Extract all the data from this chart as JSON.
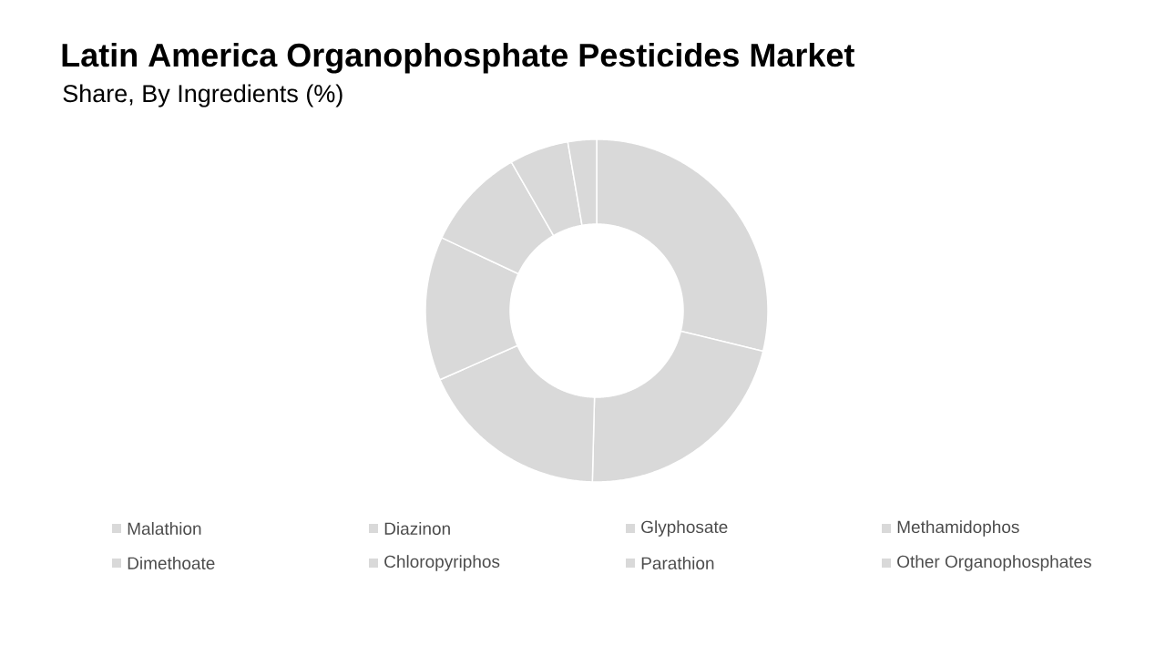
{
  "chart_data": {
    "type": "donut",
    "title": "Latin America Organophosphate Pesticides Market",
    "subtitle": "Share, By Ingredients (%)",
    "categories": [
      "Malathion",
      "Diazinon",
      "Glyphosate",
      "Methamidophos",
      "Dimethoate",
      "Chloropyriphos",
      "Parathion",
      "Other Organophosphates"
    ],
    "values": [
      28.8,
      21.6,
      18.0,
      13.6,
      9.7,
      5.6,
      2.7,
      null
    ],
    "colors": [
      "#d9d9d9",
      "#d9d9d9",
      "#d9d9d9",
      "#d9d9d9",
      "#d9d9d9",
      "#d9d9d9",
      "#d9d9d9",
      "#d9d9d9"
    ],
    "legend": "bottom"
  }
}
